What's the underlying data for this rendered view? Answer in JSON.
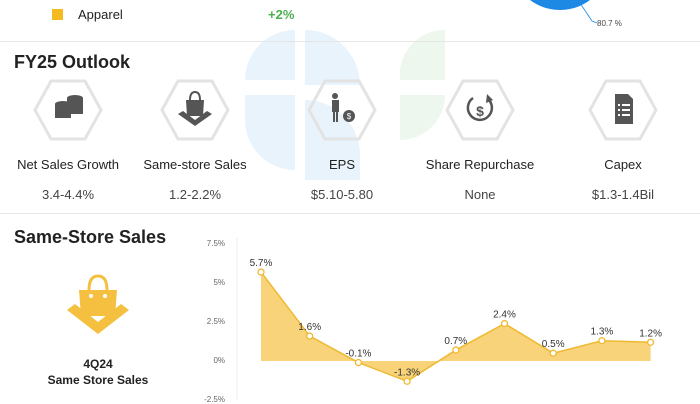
{
  "top": {
    "legend_label": "Apparel",
    "legend_color": "#f5b922",
    "change": "+2%",
    "change_color": "#4caf50",
    "pie_label": "80.7 %",
    "pie_color": "#1e88e5"
  },
  "outlook": {
    "title": "FY25 Outlook",
    "items": [
      {
        "icon": "coins-icon",
        "label": "Net Sales Growth",
        "value": "3.4-4.4%"
      },
      {
        "icon": "shopping-bag-icon",
        "label": "Same-store Sales",
        "value": "1.2-2.2%"
      },
      {
        "icon": "person-dollar-icon",
        "label": "EPS",
        "value": "$5.10-5.80"
      },
      {
        "icon": "dollar-cycle-icon",
        "label": "Share Repurchase",
        "value": "None"
      },
      {
        "icon": "document-icon",
        "label": "Capex",
        "value": "$1.3-1.4Bil"
      }
    ]
  },
  "sss": {
    "title": "Same-Store Sales",
    "caption_line1": "4Q24",
    "caption_line2": "Same Store Sales",
    "accent": "#f5c040"
  },
  "chart_data": {
    "type": "area",
    "title": "Same-Store Sales",
    "values": [
      5.7,
      1.6,
      -0.1,
      -1.3,
      0.7,
      2.4,
      0.5,
      1.3,
      1.2
    ],
    "data_labels": [
      "5.7%",
      "1.6%",
      "-0.1%",
      "-1.3%",
      "0.7%",
      "2.4%",
      "0.5%",
      "1.3%",
      "1.2%"
    ],
    "y_ticks": [
      "7.5%",
      "5%",
      "2.5%",
      "0%",
      "-2.5%"
    ],
    "y_tick_values": [
      7.5,
      5,
      2.5,
      0,
      -2.5
    ],
    "ylim": [
      -2.5,
      7.5
    ],
    "color": "#f5c040"
  }
}
